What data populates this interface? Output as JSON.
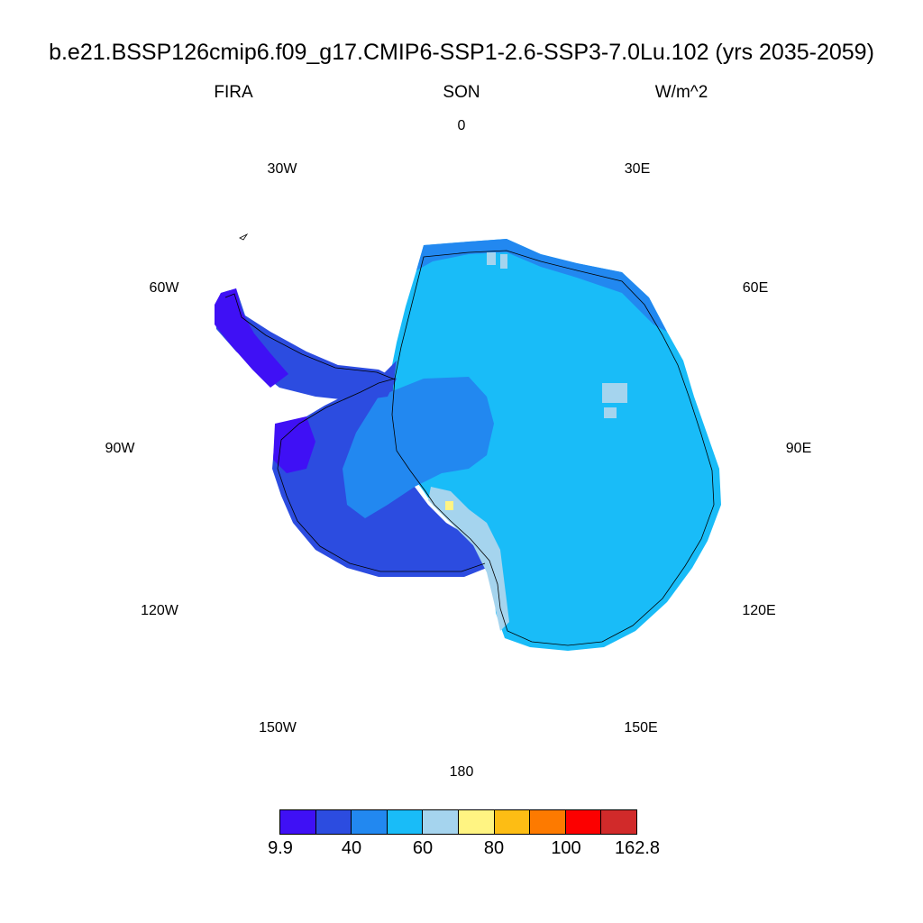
{
  "title": "b.e21.BSSP126cmip6.f09_g17.CMIP6-SSP1-2.6-SSP3-7.0Lu.102 (yrs 2035-2059)",
  "variable": "FIRA",
  "season": "SON",
  "units": "W/m^2",
  "longitude_labels": [
    "0",
    "30E",
    "60E",
    "90E",
    "120E",
    "150E",
    "180",
    "150W",
    "120W",
    "90W",
    "60W",
    "30W"
  ],
  "colorbar": {
    "colors": [
      "#3f10f5",
      "#2c4ce0",
      "#2288f0",
      "#19bcf8",
      "#a5d4ee",
      "#fff482",
      "#fdbd14",
      "#fd7a00",
      "#fc0000",
      "#d12a2a"
    ],
    "labels": [
      "9.9",
      "40",
      "60",
      "80",
      "100",
      "162.8"
    ]
  },
  "map": {
    "projection": "south-polar-stereographic",
    "region": "Antarctica",
    "dominant_class_color": "#19bcf8"
  }
}
